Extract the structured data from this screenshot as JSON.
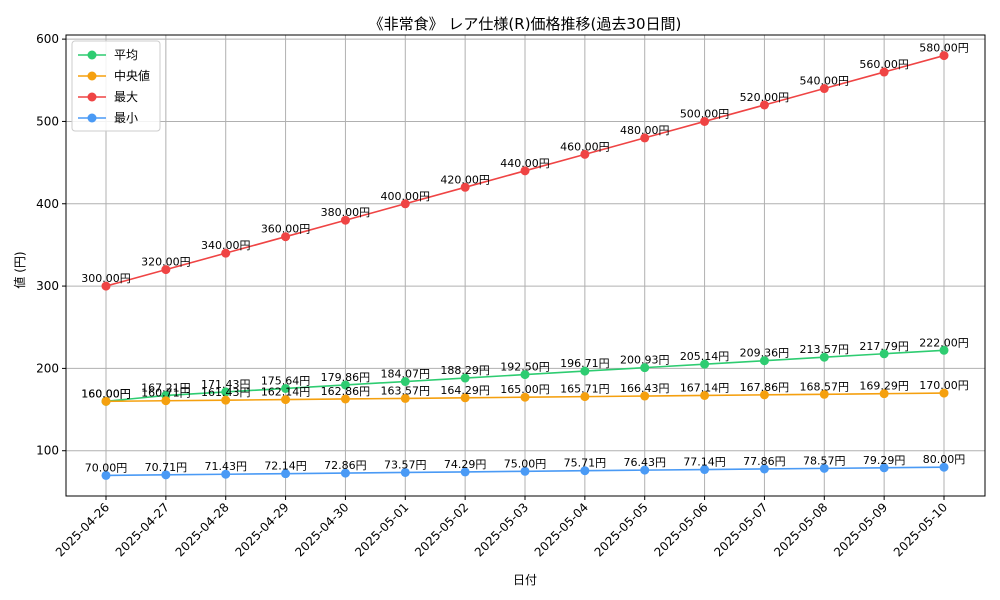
{
  "chart_data": {
    "type": "line",
    "title": "《非常食》 レア仕様(R)価格推移(過去30日間)",
    "xlabel": "日付",
    "ylabel": "値 (円)",
    "ylim": [
      45,
      605
    ],
    "yticks": [
      100,
      200,
      300,
      400,
      500,
      600
    ],
    "grid": true,
    "legend_position": "top-left",
    "categories": [
      "2025-04-26",
      "2025-04-27",
      "2025-04-28",
      "2025-04-29",
      "2025-04-30",
      "2025-05-01",
      "2025-05-02",
      "2025-05-03",
      "2025-05-04",
      "2025-05-05",
      "2025-05-06",
      "2025-05-07",
      "2025-05-08",
      "2025-05-09",
      "2025-05-10"
    ],
    "series": [
      {
        "name": "平均",
        "color": "#2ecc71",
        "values": [
          160.0,
          167.21,
          171.43,
          175.64,
          179.86,
          184.07,
          188.29,
          192.5,
          196.71,
          200.93,
          205.14,
          209.36,
          213.57,
          217.79,
          222.0
        ],
        "labels": [
          "160.00円",
          "167.21円",
          "171.43円",
          "175.64円",
          "179.86円",
          "184.07円",
          "188.29円",
          "192.50円",
          "196.71円",
          "200.93円",
          "205.14円",
          "209.36円",
          "213.57円",
          "217.79円",
          "222.00円"
        ]
      },
      {
        "name": "中央値",
        "color": "#f5a00f",
        "values": [
          160.0,
          160.71,
          161.43,
          162.14,
          162.86,
          163.57,
          164.29,
          165.0,
          165.71,
          166.43,
          167.14,
          167.86,
          168.57,
          169.29,
          170.0
        ],
        "labels": [
          "160.00円",
          "160.71円",
          "161.43円",
          "162.14円",
          "162.86円",
          "163.57円",
          "164.29円",
          "165.00円",
          "165.71円",
          "166.43円",
          "167.14円",
          "167.86円",
          "168.57円",
          "169.29円",
          "170.00円"
        ]
      },
      {
        "name": "最大",
        "color": "#ef4444",
        "values": [
          300,
          320,
          340,
          360,
          380,
          400,
          420,
          440,
          460,
          480,
          500,
          520,
          540,
          560,
          580
        ],
        "labels": [
          "300.00円",
          "320.00円",
          "340.00円",
          "360.00円",
          "380.00円",
          "400.00円",
          "420.00円",
          "440.00円",
          "460.00円",
          "480.00円",
          "500.00円",
          "520.00円",
          "540.00円",
          "560.00円",
          "580.00円"
        ]
      },
      {
        "name": "最小",
        "color": "#4a9af5",
        "values": [
          70.0,
          70.71,
          71.43,
          72.14,
          72.86,
          73.57,
          74.29,
          75.0,
          75.71,
          76.43,
          77.14,
          77.86,
          78.57,
          79.29,
          80.0
        ],
        "labels": [
          "70.00円",
          "70.71円",
          "71.43円",
          "72.14円",
          "72.86円",
          "73.57円",
          "74.29円",
          "75.00円",
          "75.71円",
          "76.43円",
          "77.14円",
          "77.86円",
          "78.57円",
          "79.29円",
          "80.00円"
        ]
      }
    ]
  }
}
